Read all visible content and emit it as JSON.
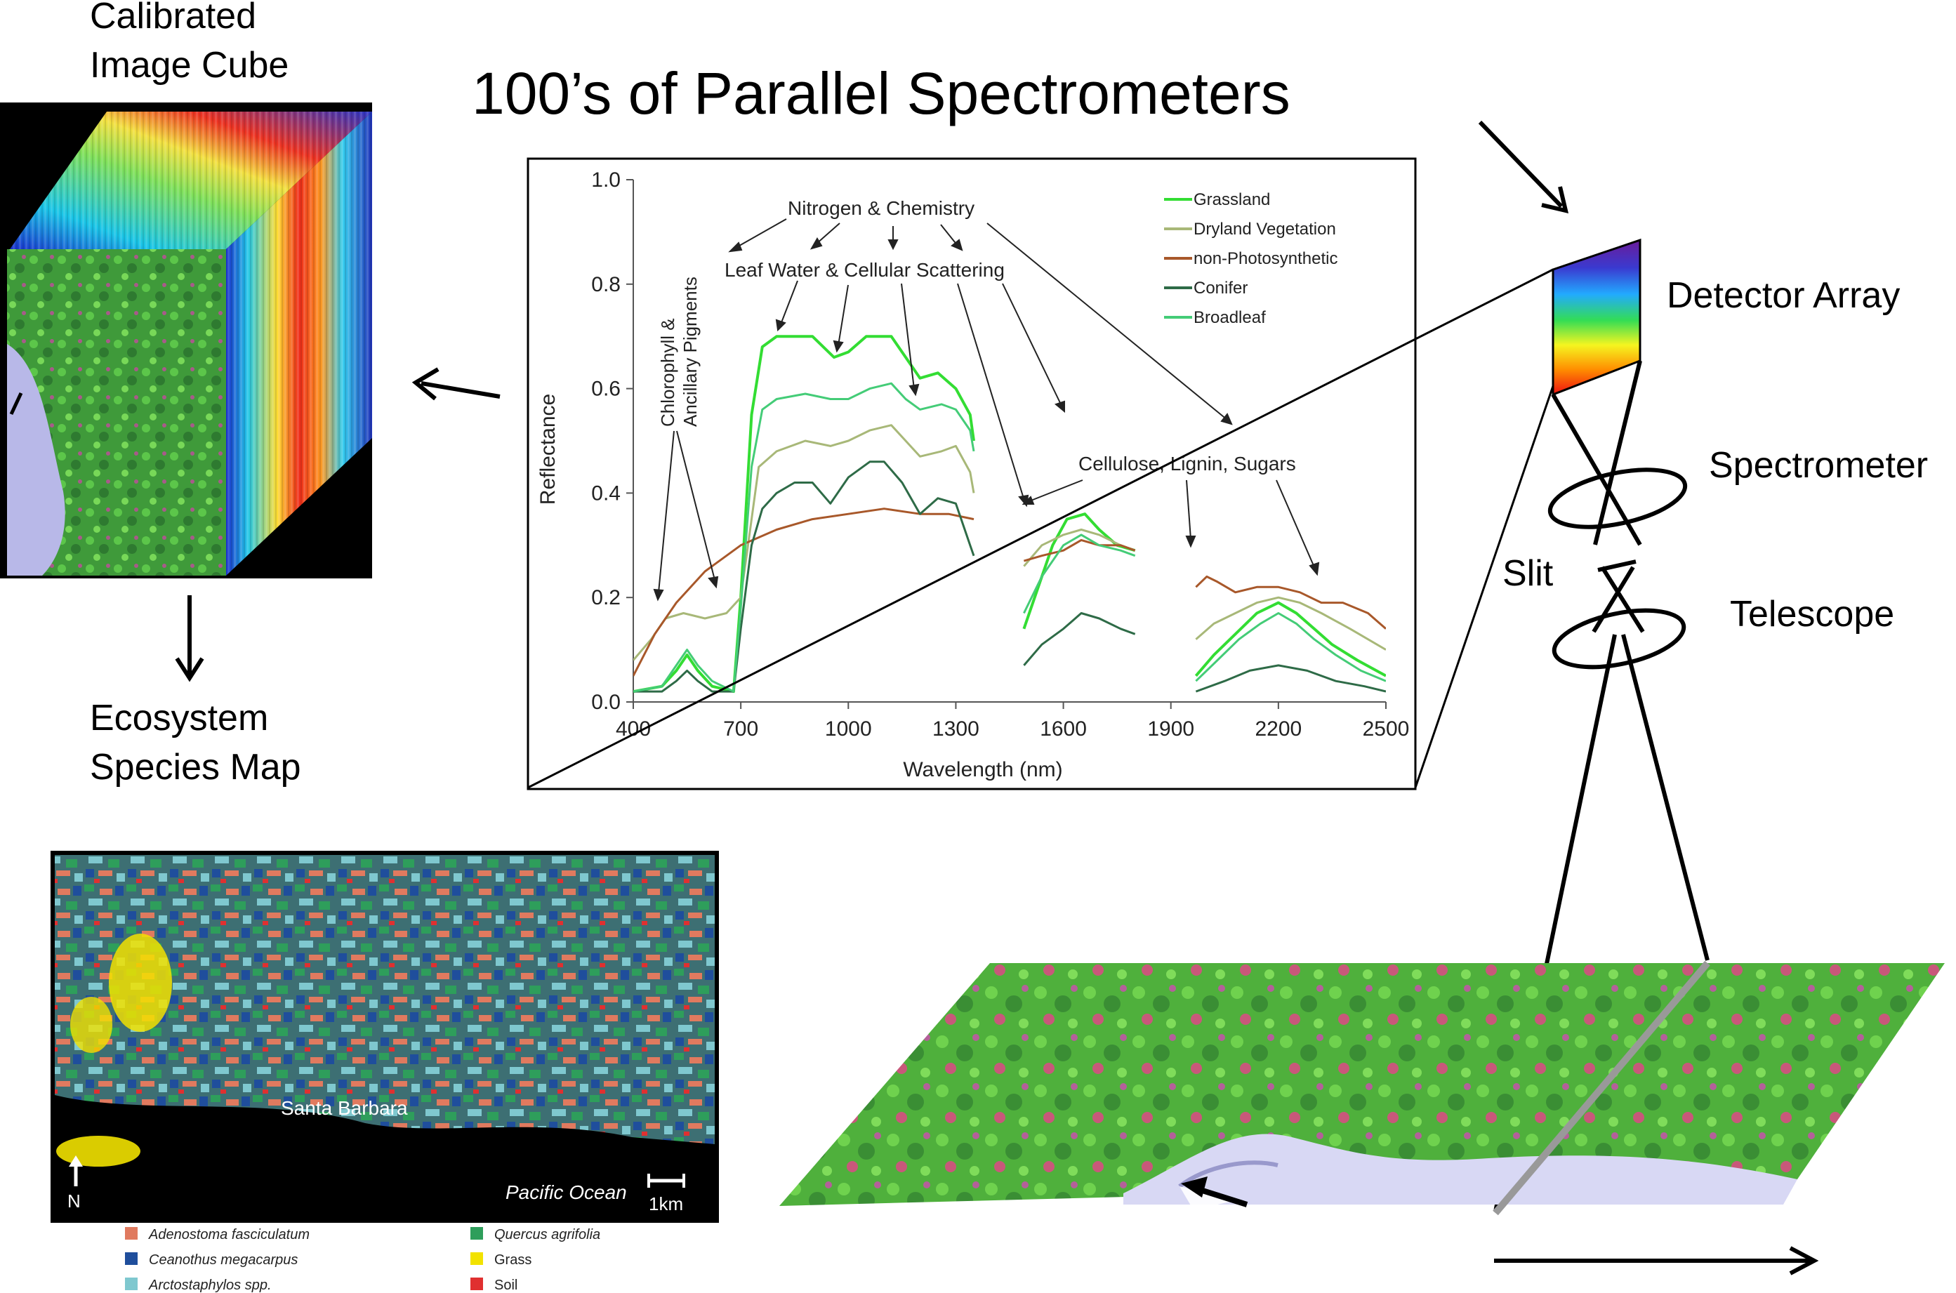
{
  "title": "100’s of  Parallel Spectrometers",
  "cube_label": [
    "Calibrated",
    "Image Cube"
  ],
  "map_label": [
    "Ecosystem",
    "Species Map"
  ],
  "instrument": {
    "detector_array": "Detector Array",
    "spectrometer": "Spectrometer",
    "slit": "Slit",
    "telescope": "Telescope"
  },
  "species_map": {
    "place_label": "Santa Barbara",
    "ocean_label": "Pacific Ocean",
    "north_label": "N",
    "scale_label": "1km",
    "legend": [
      {
        "name": "Adenostoma fasciculatum",
        "color": "#e07a5f",
        "italic": true
      },
      {
        "name": "Ceanothus megacarpus",
        "color": "#1f4e9c",
        "italic": true
      },
      {
        "name": "Arctostaphylos spp.",
        "color": "#7fc8cf",
        "italic": true
      },
      {
        "name": "Quercus agrifolia",
        "color": "#2e9e5b",
        "italic": true
      },
      {
        "name": "Grass",
        "color": "#f2e200",
        "italic": false
      },
      {
        "name": "Soil",
        "color": "#e03030",
        "italic": false
      }
    ]
  },
  "chart_data": {
    "type": "line",
    "title": "",
    "xlabel": "Wavelength (nm)",
    "ylabel": "Reflectance",
    "xlim": [
      400,
      2500
    ],
    "ylim": [
      0,
      1.0
    ],
    "xticks": [
      "400",
      "700",
      "1000",
      "1300",
      "1600",
      "1900",
      "2200",
      "2500"
    ],
    "yticks": [
      "0.0",
      "0.2",
      "0.4",
      "0.6",
      "0.8",
      "1.0"
    ],
    "legend_position": "top-right",
    "annotations": [
      "Nitrogen & Chemistry",
      "Leaf Water & Cellular Scattering",
      "Chlorophyll &",
      "Ancillary Pigments",
      "Cellulose, Lignin, Sugars"
    ],
    "series": [
      {
        "name": "Grassland",
        "color": "#33dd33",
        "width": 4,
        "segments": [
          [
            [
              400,
              0.02
            ],
            [
              480,
              0.03
            ],
            [
              520,
              0.06
            ],
            [
              550,
              0.09
            ],
            [
              580,
              0.06
            ],
            [
              620,
              0.03
            ],
            [
              680,
              0.02
            ],
            [
              700,
              0.2
            ],
            [
              730,
              0.55
            ],
            [
              760,
              0.68
            ],
            [
              800,
              0.7
            ],
            [
              900,
              0.7
            ],
            [
              960,
              0.66
            ],
            [
              1000,
              0.67
            ],
            [
              1050,
              0.7
            ],
            [
              1120,
              0.7
            ],
            [
              1160,
              0.66
            ],
            [
              1200,
              0.62
            ],
            [
              1250,
              0.63
            ],
            [
              1300,
              0.6
            ],
            [
              1340,
              0.55
            ],
            [
              1350,
              0.5
            ]
          ],
          [
            [
              1490,
              0.14
            ],
            [
              1530,
              0.22
            ],
            [
              1570,
              0.3
            ],
            [
              1610,
              0.35
            ],
            [
              1660,
              0.36
            ],
            [
              1700,
              0.33
            ],
            [
              1750,
              0.3
            ],
            [
              1800,
              0.29
            ]
          ],
          [
            [
              1970,
              0.05
            ],
            [
              2020,
              0.09
            ],
            [
              2080,
              0.13
            ],
            [
              2140,
              0.17
            ],
            [
              2200,
              0.19
            ],
            [
              2250,
              0.17
            ],
            [
              2300,
              0.14
            ],
            [
              2350,
              0.11
            ],
            [
              2420,
              0.08
            ],
            [
              2500,
              0.05
            ]
          ]
        ]
      },
      {
        "name": "Dryland Vegetation",
        "color": "#a8b878",
        "width": 3,
        "segments": [
          [
            [
              400,
              0.08
            ],
            [
              450,
              0.12
            ],
            [
              490,
              0.16
            ],
            [
              540,
              0.17
            ],
            [
              600,
              0.16
            ],
            [
              660,
              0.17
            ],
            [
              700,
              0.2
            ],
            [
              720,
              0.3
            ],
            [
              750,
              0.45
            ],
            [
              800,
              0.48
            ],
            [
              880,
              0.5
            ],
            [
              950,
              0.49
            ],
            [
              1000,
              0.5
            ],
            [
              1060,
              0.52
            ],
            [
              1120,
              0.53
            ],
            [
              1160,
              0.5
            ],
            [
              1200,
              0.47
            ],
            [
              1260,
              0.48
            ],
            [
              1300,
              0.49
            ],
            [
              1340,
              0.44
            ],
            [
              1350,
              0.4
            ]
          ],
          [
            [
              1490,
              0.26
            ],
            [
              1540,
              0.3
            ],
            [
              1600,
              0.32
            ],
            [
              1650,
              0.33
            ],
            [
              1700,
              0.32
            ],
            [
              1760,
              0.3
            ],
            [
              1800,
              0.29
            ]
          ],
          [
            [
              1970,
              0.12
            ],
            [
              2020,
              0.15
            ],
            [
              2080,
              0.17
            ],
            [
              2140,
              0.19
            ],
            [
              2200,
              0.2
            ],
            [
              2260,
              0.19
            ],
            [
              2320,
              0.17
            ],
            [
              2400,
              0.14
            ],
            [
              2500,
              0.1
            ]
          ]
        ]
      },
      {
        "name": "non-Photosynthetic",
        "color": "#a8582a",
        "width": 3,
        "segments": [
          [
            [
              400,
              0.05
            ],
            [
              460,
              0.13
            ],
            [
              520,
              0.19
            ],
            [
              600,
              0.25
            ],
            [
              700,
              0.3
            ],
            [
              800,
              0.33
            ],
            [
              900,
              0.35
            ],
            [
              1000,
              0.36
            ],
            [
              1100,
              0.37
            ],
            [
              1200,
              0.36
            ],
            [
              1280,
              0.36
            ],
            [
              1350,
              0.35
            ]
          ],
          [
            [
              1490,
              0.27
            ],
            [
              1540,
              0.28
            ],
            [
              1600,
              0.29
            ],
            [
              1650,
              0.31
            ],
            [
              1700,
              0.3
            ],
            [
              1760,
              0.3
            ],
            [
              1800,
              0.29
            ]
          ],
          [
            [
              1970,
              0.22
            ],
            [
              2000,
              0.24
            ],
            [
              2030,
              0.23
            ],
            [
              2080,
              0.21
            ],
            [
              2140,
              0.22
            ],
            [
              2200,
              0.22
            ],
            [
              2260,
              0.21
            ],
            [
              2320,
              0.19
            ],
            [
              2380,
              0.19
            ],
            [
              2450,
              0.17
            ],
            [
              2500,
              0.14
            ]
          ]
        ]
      },
      {
        "name": "Conifer",
        "color": "#2e6b47",
        "width": 3,
        "segments": [
          [
            [
              400,
              0.02
            ],
            [
              480,
              0.02
            ],
            [
              520,
              0.04
            ],
            [
              550,
              0.06
            ],
            [
              580,
              0.04
            ],
            [
              620,
              0.02
            ],
            [
              680,
              0.02
            ],
            [
              700,
              0.14
            ],
            [
              730,
              0.3
            ],
            [
              760,
              0.37
            ],
            [
              800,
              0.4
            ],
            [
              850,
              0.42
            ],
            [
              900,
              0.42
            ],
            [
              950,
              0.38
            ],
            [
              1000,
              0.43
            ],
            [
              1060,
              0.46
            ],
            [
              1100,
              0.46
            ],
            [
              1150,
              0.42
            ],
            [
              1200,
              0.36
            ],
            [
              1250,
              0.39
            ],
            [
              1300,
              0.38
            ],
            [
              1340,
              0.3
            ],
            [
              1350,
              0.28
            ]
          ],
          [
            [
              1490,
              0.07
            ],
            [
              1540,
              0.11
            ],
            [
              1600,
              0.14
            ],
            [
              1650,
              0.17
            ],
            [
              1700,
              0.16
            ],
            [
              1760,
              0.14
            ],
            [
              1800,
              0.13
            ]
          ],
          [
            [
              1970,
              0.02
            ],
            [
              2050,
              0.04
            ],
            [
              2120,
              0.06
            ],
            [
              2200,
              0.07
            ],
            [
              2280,
              0.06
            ],
            [
              2360,
              0.04
            ],
            [
              2440,
              0.03
            ],
            [
              2500,
              0.02
            ]
          ]
        ]
      },
      {
        "name": "Broadleaf",
        "color": "#44cc77",
        "width": 3,
        "segments": [
          [
            [
              400,
              0.02
            ],
            [
              480,
              0.03
            ],
            [
              520,
              0.07
            ],
            [
              550,
              0.1
            ],
            [
              580,
              0.07
            ],
            [
              620,
              0.04
            ],
            [
              680,
              0.02
            ],
            [
              700,
              0.18
            ],
            [
              730,
              0.45
            ],
            [
              760,
              0.56
            ],
            [
              800,
              0.58
            ],
            [
              880,
              0.59
            ],
            [
              950,
              0.58
            ],
            [
              1000,
              0.58
            ],
            [
              1060,
              0.6
            ],
            [
              1120,
              0.61
            ],
            [
              1160,
              0.58
            ],
            [
              1200,
              0.56
            ],
            [
              1260,
              0.57
            ],
            [
              1300,
              0.56
            ],
            [
              1340,
              0.52
            ],
            [
              1350,
              0.48
            ]
          ],
          [
            [
              1490,
              0.17
            ],
            [
              1540,
              0.24
            ],
            [
              1600,
              0.3
            ],
            [
              1650,
              0.32
            ],
            [
              1700,
              0.3
            ],
            [
              1760,
              0.29
            ],
            [
              1800,
              0.28
            ]
          ],
          [
            [
              1970,
              0.04
            ],
            [
              2030,
              0.08
            ],
            [
              2090,
              0.12
            ],
            [
              2150,
              0.15
            ],
            [
              2200,
              0.17
            ],
            [
              2250,
              0.15
            ],
            [
              2300,
              0.12
            ],
            [
              2360,
              0.09
            ],
            [
              2430,
              0.06
            ],
            [
              2500,
              0.04
            ]
          ]
        ]
      }
    ]
  }
}
